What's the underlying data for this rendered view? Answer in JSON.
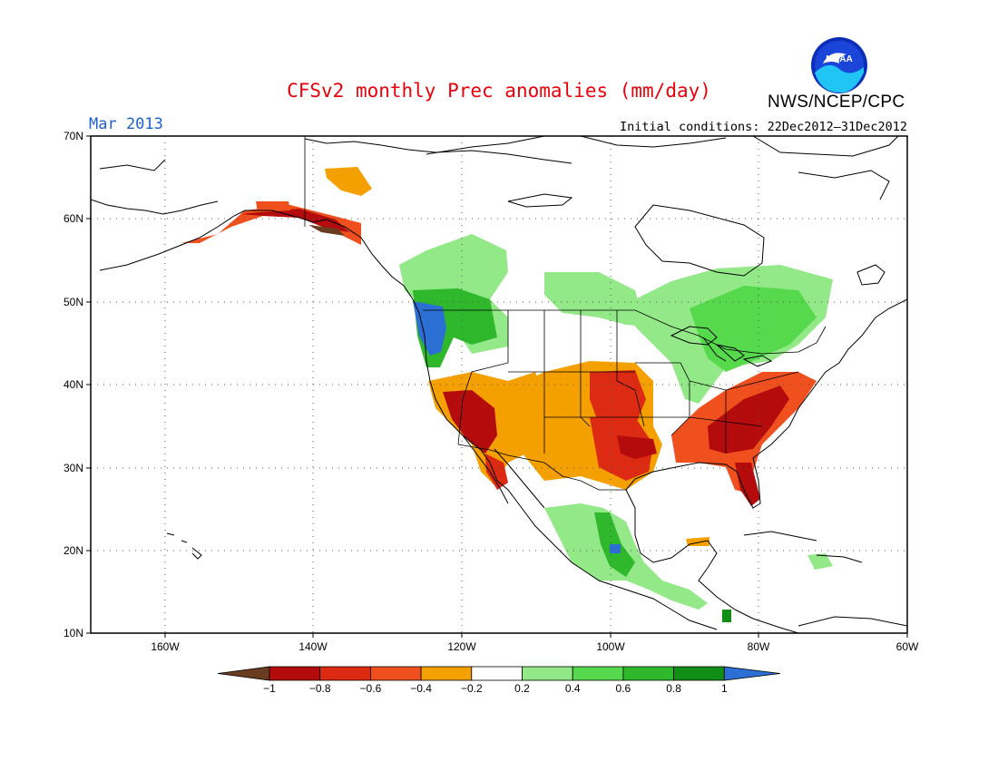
{
  "title": "CFSv2 monthly Prec anomalies (mm/day)",
  "month": "Mar 2013",
  "initial_conditions": "Initial conditions: 22Dec2012—31Dec2012",
  "organization": "NWS/NCEP/CPC",
  "logo_text": "NOAA",
  "colors": {
    "title": "#e8000b",
    "month": "#1f5fd1"
  },
  "map": {
    "lon_range": [
      -170,
      -60
    ],
    "lat_range": [
      10,
      70
    ],
    "lat_labels": [
      "70N",
      "60N",
      "50N",
      "40N",
      "30N",
      "20N",
      "10N"
    ],
    "lon_labels": [
      "160W",
      "140W",
      "120W",
      "100W",
      "80W",
      "60W"
    ],
    "grid": "dotted"
  },
  "colorbar": {
    "labels": [
      "−1",
      "−0.8",
      "−0.6",
      "−0.4",
      "−0.2",
      "0.2",
      "0.4",
      "0.6",
      "0.8",
      "1"
    ],
    "colors": [
      "#6a3c1f",
      "#b40c0c",
      "#dd2a12",
      "#f0501e",
      "#f3a000",
      "#ffffff",
      "#93e888",
      "#56d94c",
      "#2fb82c",
      "#118e16",
      "#2b6fd5"
    ]
  },
  "anomaly_regions": [
    {
      "name": "alaska-yukon",
      "value": -0.6
    },
    {
      "name": "pacific-northwest",
      "value": 1.0
    },
    {
      "name": "california-southwest",
      "value": -0.8
    },
    {
      "name": "southern-plains",
      "value": -0.4
    },
    {
      "name": "central-plains",
      "value": -0.8
    },
    {
      "name": "southeast-us",
      "value": -0.8
    },
    {
      "name": "florida",
      "value": -0.8
    },
    {
      "name": "great-lakes",
      "value": 0.4
    },
    {
      "name": "canada",
      "value": 0.4
    },
    {
      "name": "mexico",
      "value": 0.4
    }
  ]
}
